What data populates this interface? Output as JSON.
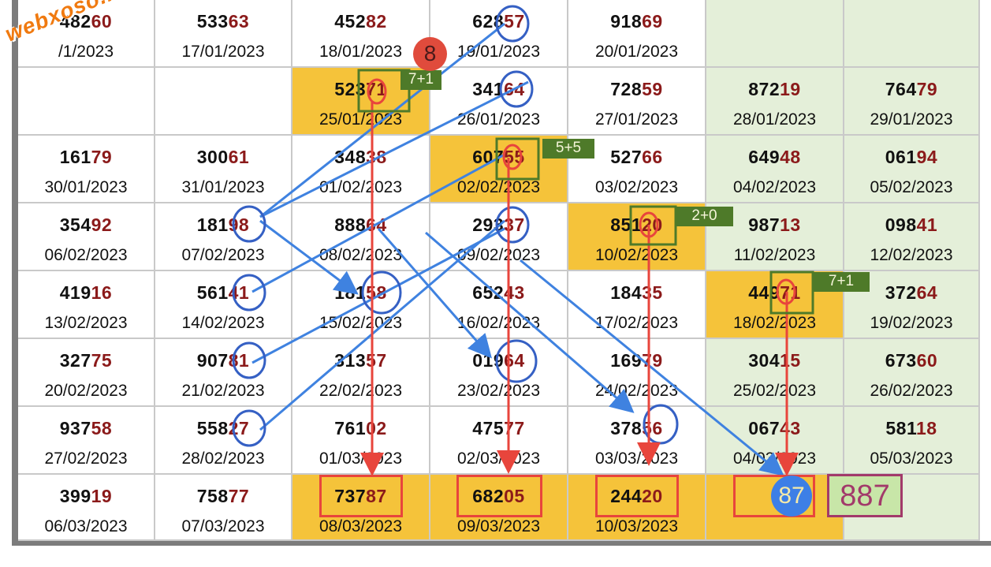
{
  "watermark": "webxoso.net",
  "badges": {
    "top_red": "8",
    "prediction_blue": "87",
    "final_prediction": "887"
  },
  "labels": [
    "7+1",
    "5+5",
    "2+0",
    "7+1"
  ],
  "colors": {
    "gold": "#f5c33a",
    "green": "#e4efd9",
    "tail": "#8b1a1a",
    "red_arrow": "#e8453c",
    "blue_arrow": "#3f82e0",
    "label_bg": "#4e7a29"
  },
  "rows": [
    [
      {
        "head": "482",
        "tail": "60",
        "date": "/1/2023",
        "bg": "white"
      },
      {
        "head": "533",
        "tail": "63",
        "date": "17/01/2023",
        "bg": "white"
      },
      {
        "head": "452",
        "tail": "82",
        "date": "18/01/2023",
        "bg": "white"
      },
      {
        "head": "628",
        "tail": "57",
        "date": "19/01/2023",
        "bg": "white"
      },
      {
        "head": "918",
        "tail": "69",
        "date": "20/01/2023",
        "bg": "white"
      },
      {
        "head": "",
        "tail": "",
        "date": "",
        "bg": "green"
      },
      {
        "head": "",
        "tail": "",
        "date": "",
        "bg": "green"
      }
    ],
    [
      {
        "head": "",
        "tail": "",
        "date": "",
        "bg": "white"
      },
      {
        "head": "",
        "tail": "",
        "date": "",
        "bg": "white"
      },
      {
        "head": "523",
        "tail": "71",
        "date": "25/01/2023",
        "bg": "gold"
      },
      {
        "head": "341",
        "tail": "64",
        "date": "26/01/2023",
        "bg": "white"
      },
      {
        "head": "728",
        "tail": "59",
        "date": "27/01/2023",
        "bg": "white"
      },
      {
        "head": "872",
        "tail": "19",
        "date": "28/01/2023",
        "bg": "green"
      },
      {
        "head": "764",
        "tail": "79",
        "date": "29/01/2023",
        "bg": "green"
      }
    ],
    [
      {
        "head": "161",
        "tail": "79",
        "date": "30/01/2023",
        "bg": "white"
      },
      {
        "head": "300",
        "tail": "61",
        "date": "31/01/2023",
        "bg": "white"
      },
      {
        "head": "348",
        "tail": "38",
        "date": "01/02/2023",
        "bg": "white"
      },
      {
        "head": "607",
        "tail": "55",
        "date": "02/02/2023",
        "bg": "gold"
      },
      {
        "head": "527",
        "tail": "66",
        "date": "03/02/2023",
        "bg": "white"
      },
      {
        "head": "649",
        "tail": "48",
        "date": "04/02/2023",
        "bg": "green"
      },
      {
        "head": "061",
        "tail": "94",
        "date": "05/02/2023",
        "bg": "green"
      }
    ],
    [
      {
        "head": "354",
        "tail": "92",
        "date": "06/02/2023",
        "bg": "white"
      },
      {
        "head": "181",
        "tail": "98",
        "date": "07/02/2023",
        "bg": "white"
      },
      {
        "head": "888",
        "tail": "64",
        "date": "08/02/2023",
        "bg": "white"
      },
      {
        "head": "293",
        "tail": "37",
        "date": "09/02/2023",
        "bg": "white"
      },
      {
        "head": "851",
        "tail": "20",
        "date": "10/02/2023",
        "bg": "gold"
      },
      {
        "head": "987",
        "tail": "13",
        "date": "11/02/2023",
        "bg": "green"
      },
      {
        "head": "098",
        "tail": "41",
        "date": "12/02/2023",
        "bg": "green"
      }
    ],
    [
      {
        "head": "419",
        "tail": "16",
        "date": "13/02/2023",
        "bg": "white"
      },
      {
        "head": "561",
        "tail": "41",
        "date": "14/02/2023",
        "bg": "white"
      },
      {
        "head": "181",
        "tail": "58",
        "date": "15/02/2023",
        "bg": "white"
      },
      {
        "head": "652",
        "tail": "43",
        "date": "16/02/2023",
        "bg": "white"
      },
      {
        "head": "184",
        "tail": "35",
        "date": "17/02/2023",
        "bg": "white"
      },
      {
        "head": "449",
        "tail": "71",
        "date": "18/02/2023",
        "bg": "gold"
      },
      {
        "head": "372",
        "tail": "64",
        "date": "19/02/2023",
        "bg": "green"
      }
    ],
    [
      {
        "head": "327",
        "tail": "75",
        "date": "20/02/2023",
        "bg": "white"
      },
      {
        "head": "907",
        "tail": "81",
        "date": "21/02/2023",
        "bg": "white"
      },
      {
        "head": "313",
        "tail": "57",
        "date": "22/02/2023",
        "bg": "white"
      },
      {
        "head": "019",
        "tail": "64",
        "date": "23/02/2023",
        "bg": "white"
      },
      {
        "head": "169",
        "tail": "79",
        "date": "24/02/2023",
        "bg": "white"
      },
      {
        "head": "304",
        "tail": "15",
        "date": "25/02/2023",
        "bg": "green"
      },
      {
        "head": "673",
        "tail": "60",
        "date": "26/02/2023",
        "bg": "green"
      }
    ],
    [
      {
        "head": "937",
        "tail": "58",
        "date": "27/02/2023",
        "bg": "white"
      },
      {
        "head": "558",
        "tail": "27",
        "date": "28/02/2023",
        "bg": "white"
      },
      {
        "head": "761",
        "tail": "02",
        "date": "01/03/2023",
        "bg": "white"
      },
      {
        "head": "475",
        "tail": "77",
        "date": "02/03/2023",
        "bg": "white"
      },
      {
        "head": "378",
        "tail": "56",
        "date": "03/03/2023",
        "bg": "white"
      },
      {
        "head": "067",
        "tail": "43",
        "date": "04/03/2023",
        "bg": "green"
      },
      {
        "head": "581",
        "tail": "18",
        "date": "05/03/2023",
        "bg": "green"
      }
    ],
    [
      {
        "head": "399",
        "tail": "19",
        "date": "06/03/2023",
        "bg": "white"
      },
      {
        "head": "758",
        "tail": "77",
        "date": "07/03/2023",
        "bg": "white"
      },
      {
        "head": "737",
        "tail": "87",
        "date": "08/03/2023",
        "bg": "gold"
      },
      {
        "head": "682",
        "tail": "05",
        "date": "09/03/2023",
        "bg": "gold"
      },
      {
        "head": "244",
        "tail": "20",
        "date": "10/03/2023",
        "bg": "gold"
      },
      {
        "head": "",
        "tail": "",
        "date": "",
        "bg": "gold"
      },
      {
        "head": "",
        "tail": "",
        "date": "",
        "bg": "green"
      }
    ]
  ]
}
